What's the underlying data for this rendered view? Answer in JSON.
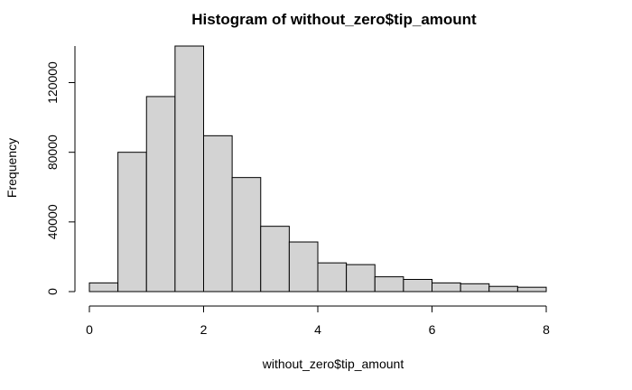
{
  "chart_data": {
    "type": "bar",
    "title": "Histogram of without_zero$tip_amount",
    "xlabel": "without_zero$tip_amount",
    "ylabel": "Frequency",
    "bin_edges": [
      0,
      0.5,
      1,
      1.5,
      2,
      2.5,
      3,
      3.5,
      4,
      4.5,
      5,
      5.5,
      6,
      6.5,
      7,
      7.5,
      8
    ],
    "values": [
      5000,
      80000,
      112000,
      141000,
      89500,
      65500,
      37500,
      28500,
      16500,
      15500,
      8500,
      7000,
      5000,
      4500,
      3000,
      2500
    ],
    "xlim": [
      0,
      8.5
    ],
    "ylim": [
      0,
      141000
    ],
    "x_ticks": [
      0,
      2,
      4,
      6,
      8
    ],
    "x_tick_labels": [
      "0",
      "2",
      "4",
      "6",
      "8"
    ],
    "y_ticks": [
      0,
      40000,
      80000,
      120000
    ],
    "y_tick_labels": [
      "0",
      "40000",
      "80000",
      "120000"
    ],
    "bar_fill": "#d3d3d3",
    "bar_stroke": "#000000"
  }
}
